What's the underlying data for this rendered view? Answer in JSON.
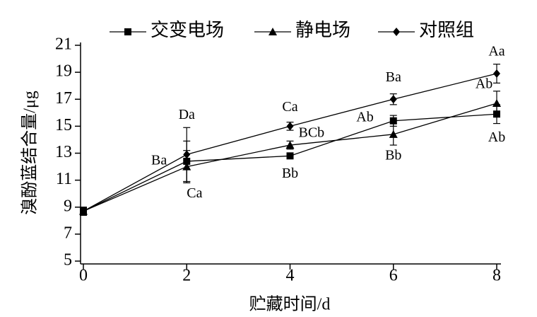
{
  "chart_data": {
    "type": "line",
    "x_label": "贮藏时间/d",
    "y_label": "溴酚蓝结合量/μg",
    "x": [
      0,
      2,
      4,
      6,
      8
    ],
    "xlim": [
      0,
      8
    ],
    "xticks": [
      0,
      2,
      4,
      6,
      8
    ],
    "ylim": [
      5,
      21
    ],
    "yticks": [
      5,
      7,
      9,
      11,
      13,
      15,
      17,
      19,
      21
    ],
    "legend": "top",
    "series": [
      {
        "name": "交变电场",
        "color": "#000000",
        "marker": "square",
        "values": [
          8.7,
          12.4,
          12.8,
          15.4,
          15.9
        ],
        "errors": [
          0.3,
          1.5,
          0.2,
          0.4,
          0.7
        ],
        "letters": [
          null,
          "Ba",
          "Bb",
          "Ab",
          "Ab"
        ]
      },
      {
        "name": "静电场",
        "color": "#000000",
        "marker": "triangle",
        "values": [
          8.7,
          12.0,
          13.6,
          14.4,
          16.7
        ],
        "errors": [
          0.3,
          1.2,
          0.3,
          0.8,
          0.9
        ],
        "letters": [
          null,
          "Ca",
          "BCb",
          "Bb",
          "Ab"
        ]
      },
      {
        "name": "对照组",
        "color": "#000000",
        "marker": "diamond",
        "values": [
          8.7,
          12.9,
          15.0,
          17.0,
          18.9
        ],
        "errors": [
          0.3,
          2.0,
          0.3,
          0.4,
          0.7
        ],
        "letters": [
          null,
          "Da",
          "Ca",
          "Ba",
          "Aa"
        ]
      }
    ]
  }
}
